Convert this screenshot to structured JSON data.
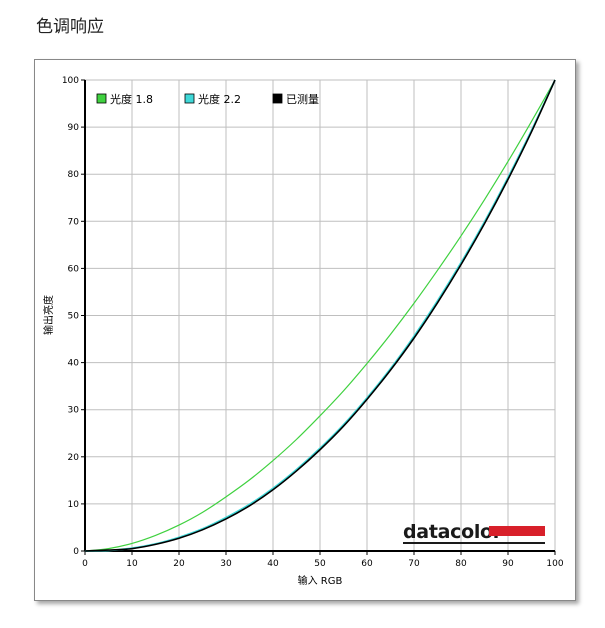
{
  "page": {
    "title": "色调响应"
  },
  "colors": {
    "gamma18": "#3fd13f",
    "gamma22": "#3fd8d8",
    "measured": "#000000",
    "brand_bar": "#d8202a",
    "grid": "#bfbfbf"
  },
  "brand": {
    "name": "datacolor"
  },
  "chart_data": {
    "type": "line",
    "title": "",
    "xlabel": "输入 RGB",
    "ylabel": "输出亮度",
    "xlim": [
      0,
      100
    ],
    "ylim": [
      0,
      100
    ],
    "xticks": [
      0,
      10,
      20,
      30,
      40,
      50,
      60,
      70,
      80,
      90,
      100
    ],
    "yticks": [
      0,
      10,
      20,
      30,
      40,
      50,
      60,
      70,
      80,
      90,
      100
    ],
    "grid": true,
    "legend_position": "top-left",
    "series": [
      {
        "name": "光度 1.8",
        "color": "#3fd13f",
        "x": [
          0,
          5,
          10,
          15,
          20,
          25,
          30,
          35,
          40,
          45,
          50,
          55,
          60,
          65,
          70,
          75,
          80,
          85,
          90,
          95,
          100
        ],
        "y": [
          0,
          0.5,
          1.6,
          3.3,
          5.5,
          8.2,
          11.5,
          15.1,
          19.2,
          23.7,
          28.7,
          34.0,
          39.8,
          46.0,
          52.6,
          59.6,
          66.9,
          74.6,
          82.7,
          91.2,
          100
        ]
      },
      {
        "name": "光度 2.2",
        "color": "#3fd8d8",
        "x": [
          0,
          5,
          10,
          15,
          20,
          25,
          30,
          35,
          40,
          45,
          50,
          55,
          60,
          65,
          70,
          75,
          80,
          85,
          90,
          95,
          100
        ],
        "y": [
          0,
          0.1,
          0.6,
          1.5,
          2.9,
          4.7,
          7.1,
          9.9,
          13.3,
          17.3,
          21.8,
          26.8,
          32.5,
          38.7,
          45.6,
          53.1,
          61.2,
          69.9,
          79.3,
          89.3,
          100
        ]
      },
      {
        "name": "已测量",
        "color": "#000000",
        "x": [
          0,
          5,
          10,
          15,
          20,
          25,
          30,
          35,
          40,
          45,
          50,
          55,
          60,
          65,
          70,
          75,
          80,
          85,
          90,
          95,
          100
        ],
        "y": [
          0,
          0.2,
          0.5,
          1.4,
          2.7,
          4.5,
          6.8,
          9.6,
          13.0,
          17.0,
          21.5,
          26.5,
          32.2,
          38.4,
          45.2,
          52.7,
          60.8,
          69.5,
          78.9,
          89.0,
          100
        ]
      }
    ]
  }
}
